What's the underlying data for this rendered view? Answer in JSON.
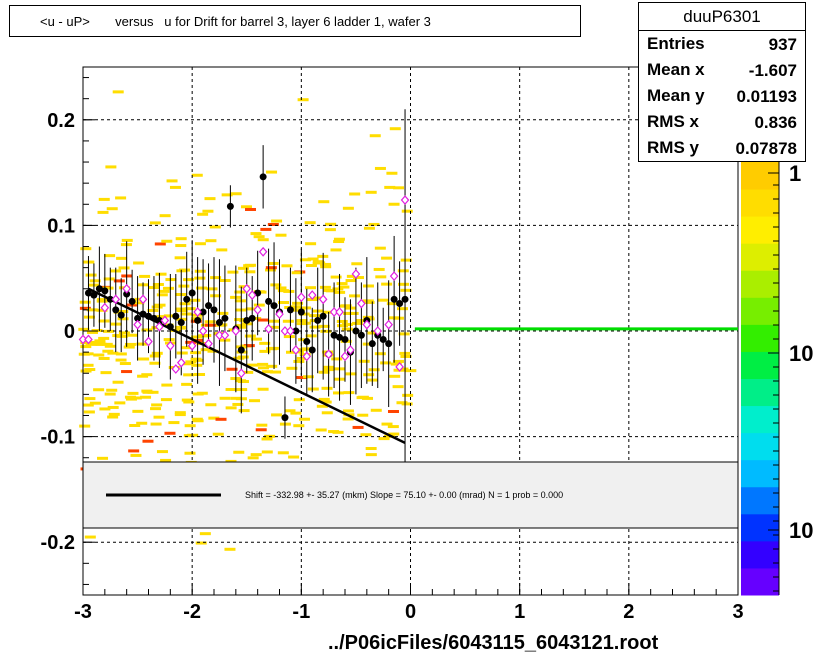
{
  "title": "<u - uP>       versus   u for Drift for barrel 3, layer 6 ladder 1, wafer 3",
  "stats": {
    "name": "duuP6301",
    "rows": [
      {
        "key": "Entries",
        "value": "937"
      },
      {
        "key": "Mean x",
        "value": "-1.607"
      },
      {
        "key": "Mean y",
        "value": "0.01193"
      },
      {
        "key": "RMS x",
        "value": "0.836"
      },
      {
        "key": "RMS y",
        "value": "0.07878"
      }
    ]
  },
  "footer": "../P06icFiles/6043115_6043121.root",
  "legend_text": "Shift =  -332.98 +- 35.27 (mkm) Slope =    75.10 +- 0.00 (mrad)  N = 1 prob = 0.000",
  "colors": {
    "profile_filled": "#000000",
    "profile_open": "#e020e0",
    "fit_line": "#000000",
    "zero_line": "#00dd00",
    "scatter_main": "#ffdd00",
    "scatter_hot": "#ff4400",
    "legend_bg": "#f0f0f0"
  },
  "chart_data": {
    "type": "scatter",
    "xlim": [
      -3,
      3
    ],
    "ylim": [
      -0.25,
      0.25
    ],
    "x_ticks": [
      -3,
      -2,
      -1,
      0,
      1,
      2,
      3
    ],
    "x_tick_labels": [
      "-3",
      "-2",
      "-1",
      "0",
      "1",
      "2",
      "3"
    ],
    "y_ticks": [
      -0.2,
      -0.1,
      0,
      0.1,
      0.2
    ],
    "y_tick_labels": [
      "-0.2",
      "-0.1",
      "0",
      "0.1",
      "0.2"
    ],
    "grid": true,
    "colorbar": {
      "tick_labels": [
        "1",
        "10",
        "10"
      ]
    },
    "series": [
      {
        "marker": "filled-circle",
        "x": [
          -2.95,
          -2.9,
          -2.85,
          -2.8,
          -2.75,
          -2.7,
          -2.65,
          -2.6,
          -2.55,
          -2.5,
          -2.45,
          -2.4,
          -2.35,
          -2.3,
          -2.2,
          -2.15,
          -2.1,
          -2.05,
          -2.0,
          -1.95,
          -1.9,
          -1.85,
          -1.8,
          -1.75,
          -1.7,
          -1.65,
          -1.6,
          -1.55,
          -1.5,
          -1.45,
          -1.4,
          -1.35,
          -1.3,
          -1.25,
          -1.2,
          -1.15,
          -1.1,
          -1.05,
          -1.0,
          -0.95,
          -0.9,
          -0.85,
          -0.8,
          -0.75,
          -0.7,
          -0.65,
          -0.6,
          -0.55,
          -0.5,
          -0.45,
          -0.4,
          -0.35,
          -0.3,
          -0.25,
          -0.2,
          -0.15,
          -0.1,
          -0.05
        ],
        "y": [
          0.036,
          0.034,
          0.04,
          0.038,
          0.03,
          0.02,
          0.015,
          0.035,
          0.028,
          0.012,
          0.016,
          0.014,
          0.012,
          0.01,
          0.004,
          0.014,
          0.008,
          0.03,
          0.036,
          0.01,
          0.018,
          0.024,
          0.02,
          0.008,
          0.012,
          0.118,
          0.002,
          -0.018,
          0.01,
          0.012,
          0.036,
          0.146,
          0.028,
          0.024,
          0.018,
          -0.082,
          0.02,
          0.0,
          0.018,
          -0.01,
          -0.018,
          0.01,
          0.014,
          -0.022,
          -0.004,
          -0.006,
          -0.008,
          -0.02,
          0.0,
          -0.004,
          0.01,
          -0.012,
          -0.004,
          -0.008,
          -0.012,
          0.03,
          0.026,
          0.03
        ],
        "yerr": [
          0.035,
          0.03,
          0.04,
          0.035,
          0.03,
          0.04,
          0.035,
          0.05,
          0.03,
          0.04,
          0.03,
          0.035,
          0.04,
          0.045,
          0.05,
          0.04,
          0.05,
          0.045,
          0.05,
          0.06,
          0.05,
          0.04,
          0.05,
          0.06,
          0.05,
          0.02,
          0.06,
          0.06,
          0.05,
          0.04,
          0.04,
          0.03,
          0.05,
          0.06,
          0.05,
          0.02,
          0.04,
          0.05,
          0.06,
          0.05,
          0.04,
          0.05,
          0.06,
          0.04,
          0.05,
          0.06,
          0.04,
          0.05,
          0.06,
          0.05,
          0.06,
          0.04,
          0.05,
          0.03,
          0.06,
          0.06,
          0.04,
          0.18
        ]
      },
      {
        "marker": "open-diamond",
        "x": [
          -3.0,
          -2.95,
          -2.8,
          -2.7,
          -2.6,
          -2.5,
          -2.45,
          -2.4,
          -2.3,
          -2.25,
          -2.2,
          -2.15,
          -2.1,
          -2.0,
          -1.95,
          -1.9,
          -1.85,
          -1.75,
          -1.7,
          -1.6,
          -1.55,
          -1.5,
          -1.45,
          -1.4,
          -1.35,
          -1.3,
          -1.2,
          -1.15,
          -1.1,
          -1.05,
          -1.0,
          -0.95,
          -0.9,
          -0.8,
          -0.75,
          -0.7,
          -0.65,
          -0.6,
          -0.55,
          -0.5,
          -0.45,
          -0.4,
          -0.3,
          -0.2,
          -0.15,
          -0.1,
          -0.05
        ],
        "y": [
          -0.008,
          -0.008,
          0.022,
          0.03,
          0.04,
          0.006,
          0.03,
          -0.01,
          0.004,
          0.01,
          -0.014,
          -0.036,
          -0.03,
          -0.014,
          0.018,
          0.0,
          -0.012,
          -0.004,
          -0.004,
          0.0,
          -0.04,
          0.04,
          0.034,
          0.02,
          0.075,
          0.002,
          0.016,
          0.0,
          0.0,
          -0.018,
          0.032,
          -0.024,
          0.034,
          0.03,
          -0.022,
          0.018,
          0.018,
          -0.024,
          -0.018,
          0.054,
          0.026,
          0.006,
          0.0,
          0.006,
          0.052,
          -0.034,
          0.124
        ]
      },
      {
        "type": "line",
        "name": "fit",
        "x": [
          -2.95,
          -0.05
        ],
        "y": [
          0.04,
          -0.106
        ]
      },
      {
        "type": "line",
        "name": "zero",
        "x": [
          0.04,
          3.0
        ],
        "y": [
          0.002,
          0.002
        ]
      }
    ]
  }
}
